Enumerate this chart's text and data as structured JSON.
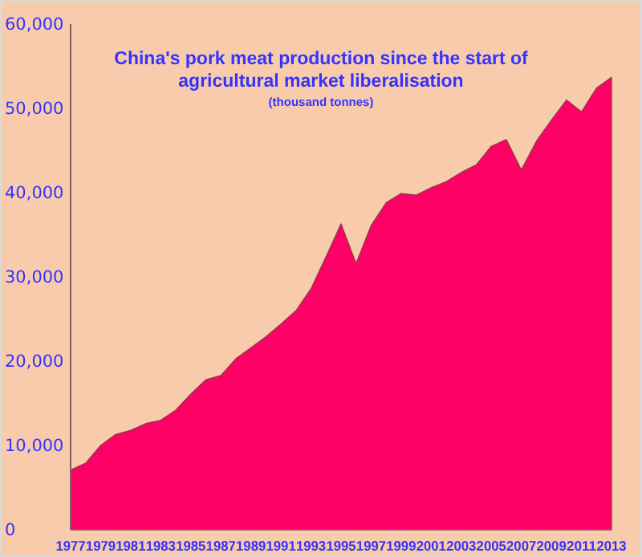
{
  "chart_data": {
    "type": "area",
    "title": "China's pork meat production since the start of agricultural market liberalisation",
    "subtitle": "(thousand tonnes)",
    "categories": [
      "1977",
      null,
      "1979",
      null,
      "1981",
      null,
      "1983",
      null,
      "1985",
      null,
      "1987",
      null,
      "1989",
      null,
      "1991",
      null,
      "1993",
      null,
      "1995",
      null,
      "1997",
      null,
      "1999",
      null,
      "2001",
      null,
      "2003",
      null,
      "2005",
      null,
      "2007",
      null,
      "2009",
      null,
      "2011",
      null,
      "2013"
    ],
    "series": [
      {
        "color": "#ff0066",
        "values": [
          7100,
          7900,
          10000,
          11300,
          11800,
          12600,
          13000,
          14200,
          16100,
          17800,
          18300,
          20300,
          21600,
          22900,
          24400,
          26000,
          28600,
          32400,
          36300,
          31600,
          36100,
          38800,
          39900,
          39700,
          40600,
          41300,
          42400,
          43300,
          45500,
          46300,
          42700,
          46100,
          48600,
          51000,
          49600,
          52400,
          53700
        ]
      }
    ],
    "ylim": [
      0,
      60000
    ],
    "yticks": [
      {
        "value": 0,
        "label": "0"
      },
      {
        "value": 10000,
        "label": "10,000"
      },
      {
        "value": 20000,
        "label": "20,000"
      },
      {
        "value": 30000,
        "label": "30,000"
      },
      {
        "value": 40000,
        "label": "40,000"
      },
      {
        "value": 50000,
        "label": "50,000"
      },
      {
        "value": 60000,
        "label": "60,000"
      }
    ],
    "grid": false
  }
}
